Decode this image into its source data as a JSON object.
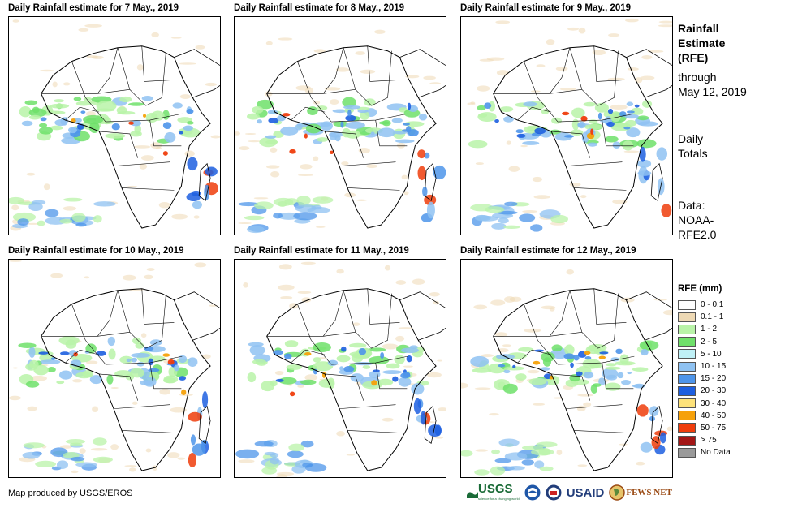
{
  "panels": [
    {
      "title": "Daily Rainfall estimate for 7 May., 2019",
      "date": "7 May"
    },
    {
      "title": "Daily Rainfall estimate for 8 May., 2019",
      "date": "8 May"
    },
    {
      "title": "Daily Rainfall estimate for 9 May., 2019",
      "date": "9 May"
    },
    {
      "title": "Daily Rainfall estimate for 10 May., 2019",
      "date": "10 May"
    },
    {
      "title": "Daily Rainfall estimate for 11 May., 2019",
      "date": "11 May"
    },
    {
      "title": "Daily Rainfall estimate for 12 May., 2019",
      "date": "12 May"
    }
  ],
  "sidebar": {
    "heading_line1": "Rainfall",
    "heading_line2": "Estimate",
    "heading_line3": "(RFE)",
    "through": "through",
    "through_date": "May 12, 2019",
    "daily": "Daily",
    "totals": "Totals",
    "data_label": "Data:",
    "data_source1": "NOAA-",
    "data_source2": "RFE2.0"
  },
  "legend": {
    "title": "RFE (mm)",
    "items": [
      {
        "label": "0 - 0.1",
        "color": "#ffffff"
      },
      {
        "label": "0.1 - 1",
        "color": "#eed9b4"
      },
      {
        "label": "1 - 2",
        "color": "#b9f3a8"
      },
      {
        "label": "2 - 5",
        "color": "#6fe06a"
      },
      {
        "label": "5 - 10",
        "color": "#bff0f6"
      },
      {
        "label": "10 - 15",
        "color": "#8fc2f2"
      },
      {
        "label": "15 - 20",
        "color": "#4e95ea"
      },
      {
        "label": "20 - 30",
        "color": "#1d5fe0"
      },
      {
        "label": "30 - 40",
        "color": "#fde27a"
      },
      {
        "label": "40 - 50",
        "color": "#f6a10a"
      },
      {
        "label": "50 - 75",
        "color": "#ef3d0c"
      },
      {
        "label": "> 75",
        "color": "#a31616"
      },
      {
        "label": "No Data",
        "color": "#9a9a9a"
      }
    ]
  },
  "credit": "Map produced by USGS/EROS",
  "logos": {
    "usgs": "USGS",
    "usgs_tagline": "science for a changing world",
    "usaid": "USAID",
    "fewsnet": "FEWS NET"
  }
}
